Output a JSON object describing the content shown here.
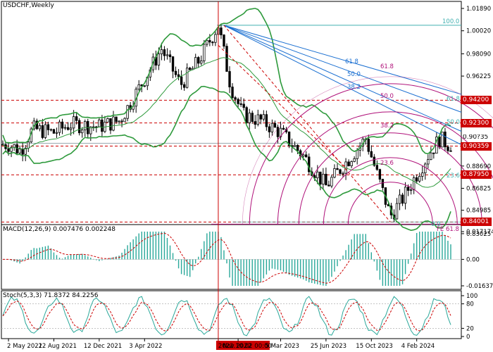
{
  "window": {
    "title": "USDCHF,Weekly"
  },
  "colors": {
    "bg": "#ffffff",
    "candle": "#000000",
    "bollinger": "#2e9a3c",
    "fib_fan": "#1a6fd1",
    "fib_arc": "#b0127a",
    "fib_levels": "#cc0000",
    "fib_retrace": "#40b0b0",
    "macd_hist": "#2aa89a",
    "macd_signal": "#cc0000",
    "stoch_main": "#2aa89a",
    "stoch_signal": "#cc0000",
    "vline": "#cc0000",
    "tag_red": "#cc0000"
  },
  "price_axis": {
    "ticks": [
      "1.01890",
      "1.00020",
      "0.98090",
      "0.96225",
      "0.94200",
      "0.92300",
      "0.90359",
      "0.88690",
      "0.86825",
      "0.84985",
      "0.83025"
    ]
  },
  "price_tags": [
    {
      "label": "0.94200",
      "price": 0.942,
      "color": "#cc0000"
    },
    {
      "label": "0.92300",
      "price": 0.923,
      "color": "#cc0000"
    },
    {
      "label": "0.90359",
      "price": 0.9036,
      "color": "#cc0000"
    },
    {
      "label": "0.87950",
      "price": 0.8795,
      "color": "#cc0000"
    },
    {
      "label": "0.84001",
      "price": 0.84,
      "color": "#cc0000"
    }
  ],
  "current_price_label": "0.90?35",
  "fib_labels": {
    "fan": [
      "100.0",
      "61.8",
      "50.0",
      "38.2"
    ],
    "arcs": [
      "61.8",
      "50.0",
      "38.2",
      "23.6",
      "0.0"
    ],
    "retrace_right": [
      "61.8",
      "50.0",
      "23.6"
    ],
    "fe": "FE 61.8"
  },
  "macd": {
    "label": "MACD(12,26,9) 0.007476 0.002248",
    "ticks": [
      "0.017174",
      "0.00",
      "-0.016378"
    ]
  },
  "stoch": {
    "label": "Stoch(5,3,3) 71.8372 84.2256",
    "ticks": [
      "100",
      "80",
      "20",
      "0"
    ]
  },
  "time_axis": {
    "labels": [
      "2 May 2021",
      "22 Aug 2021",
      "12 Dec 2021",
      "3 Apr 2022",
      "2022.10.02 00:00",
      "Nov 2022",
      "5 Mar 2023",
      "25 Jun 2023",
      "15 Oct 2023",
      "4 Feb 2024"
    ],
    "highlight": "2022.10.02 00:00"
  },
  "chart_data": {
    "type": "candlestick",
    "symbol": "USDCHF",
    "timeframe": "Weekly",
    "ylim": [
      0.8302,
      1.0189
    ],
    "close_path": [
      [
        "2021-05-02",
        0.905
      ],
      [
        "2021-06-01",
        0.9
      ],
      [
        "2021-07-01",
        0.918
      ],
      [
        "2021-08-22",
        0.915
      ],
      [
        "2021-10-01",
        0.922
      ],
      [
        "2021-12-12",
        0.92
      ],
      [
        "2022-02-01",
        0.925
      ],
      [
        "2022-04-03",
        0.96
      ],
      [
        "2022-05-15",
        0.985
      ],
      [
        "2022-07-01",
        0.955
      ],
      [
        "2022-08-15",
        0.975
      ],
      [
        "2022-10-02",
        1.005
      ],
      [
        "2022-11-01",
        0.955
      ],
      [
        "2022-12-01",
        0.93
      ],
      [
        "2023-01-15",
        0.925
      ],
      [
        "2023-03-05",
        0.915
      ],
      [
        "2023-05-01",
        0.895
      ],
      [
        "2023-06-25",
        0.87
      ],
      [
        "2023-08-01",
        0.885
      ],
      [
        "2023-10-01",
        0.91
      ],
      [
        "2023-10-15",
        0.895
      ],
      [
        "2023-12-01",
        0.845
      ],
      [
        "2024-01-01",
        0.86
      ],
      [
        "2024-02-04",
        0.88
      ],
      [
        "2024-03-01",
        0.895
      ],
      [
        "2024-04-01",
        0.91
      ],
      [
        "2024-04-21",
        0.905
      ]
    ]
  }
}
